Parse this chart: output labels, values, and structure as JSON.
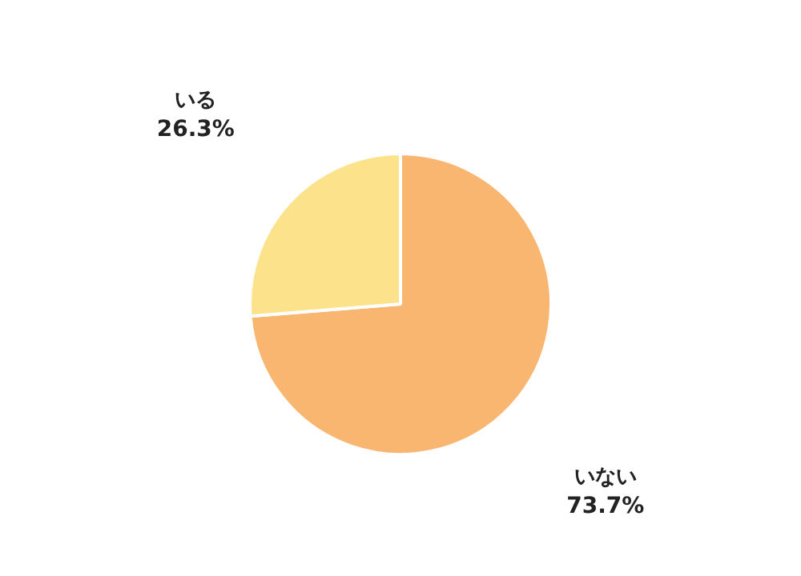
{
  "chart_data": {
    "type": "pie",
    "categories": [
      "いない",
      "いる"
    ],
    "values": [
      73.7,
      26.3
    ],
    "colors": [
      "#f9b671",
      "#fde28c"
    ],
    "value_labels": [
      "73.7%",
      "26.3%"
    ],
    "legend": false
  }
}
